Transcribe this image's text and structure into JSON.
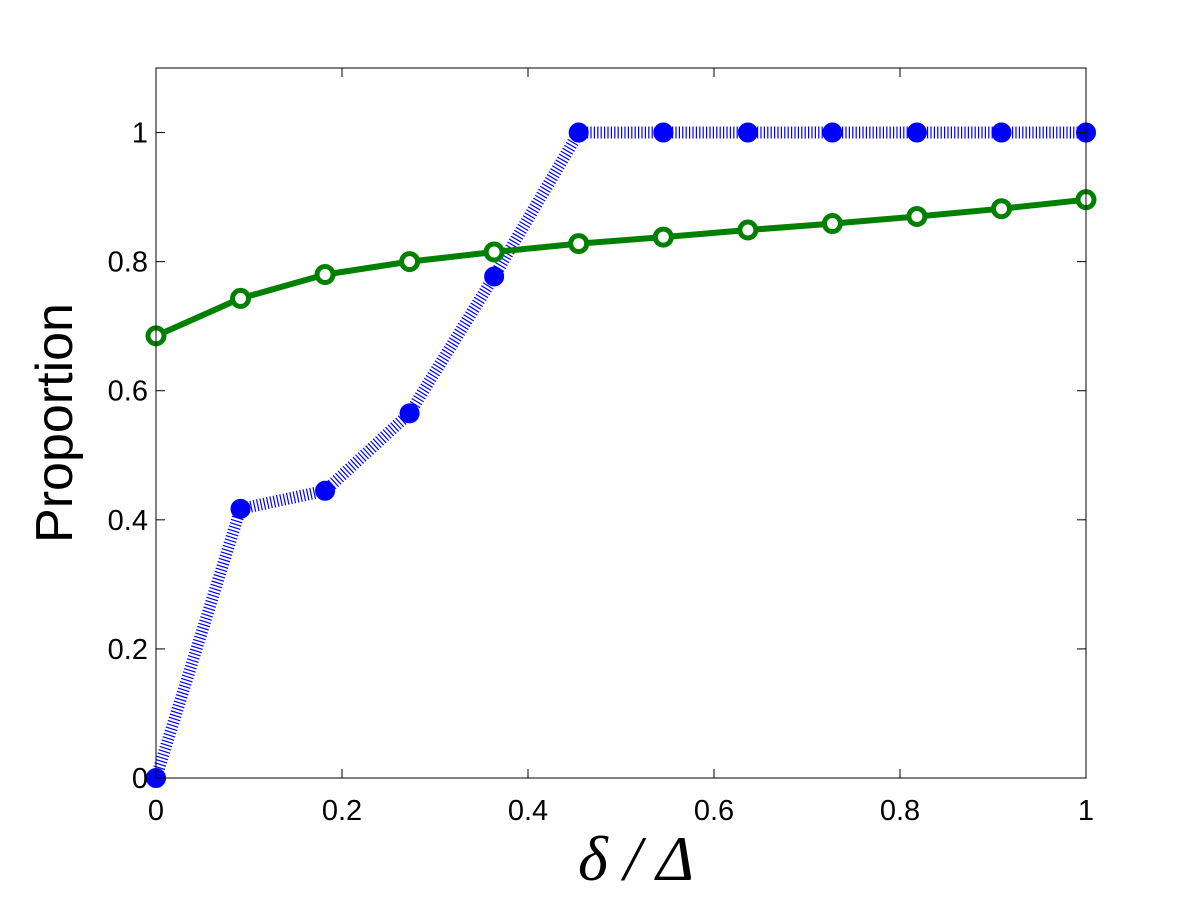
{
  "chart_data": {
    "type": "line",
    "title": "",
    "xlabel": "δ / Δ",
    "ylabel": "Proportion",
    "xlim": [
      0,
      1
    ],
    "ylim": [
      0,
      1.1
    ],
    "xticks": [
      0,
      0.2,
      0.4,
      0.6,
      0.8,
      1
    ],
    "yticks": [
      0,
      0.2,
      0.4,
      0.6,
      0.8,
      1
    ],
    "xtick_labels": [
      "0",
      "0.2",
      "0.4",
      "0.6",
      "0.8",
      "1"
    ],
    "ytick_labels": [
      "0",
      "0.2",
      "0.4",
      "0.6",
      "0.8",
      "1"
    ],
    "grid": false,
    "legend": "none",
    "x": [
      0,
      0.0909,
      0.1818,
      0.2727,
      0.3636,
      0.4545,
      0.5455,
      0.6364,
      0.7273,
      0.8182,
      0.9091,
      1.0
    ],
    "series": [
      {
        "color": "#0000ff",
        "line_style": "dotted",
        "marker": "filled-circle",
        "values": [
          0.0,
          0.417,
          0.445,
          0.565,
          0.777,
          1.0,
          1.0,
          1.0,
          1.0,
          1.0,
          1.0,
          1.0
        ]
      },
      {
        "color": "#008000",
        "line_style": "solid",
        "marker": "circle",
        "values": [
          0.685,
          0.743,
          0.78,
          0.8,
          0.815,
          0.828,
          0.838,
          0.849,
          0.859,
          0.87,
          0.882,
          0.896
        ]
      }
    ]
  }
}
